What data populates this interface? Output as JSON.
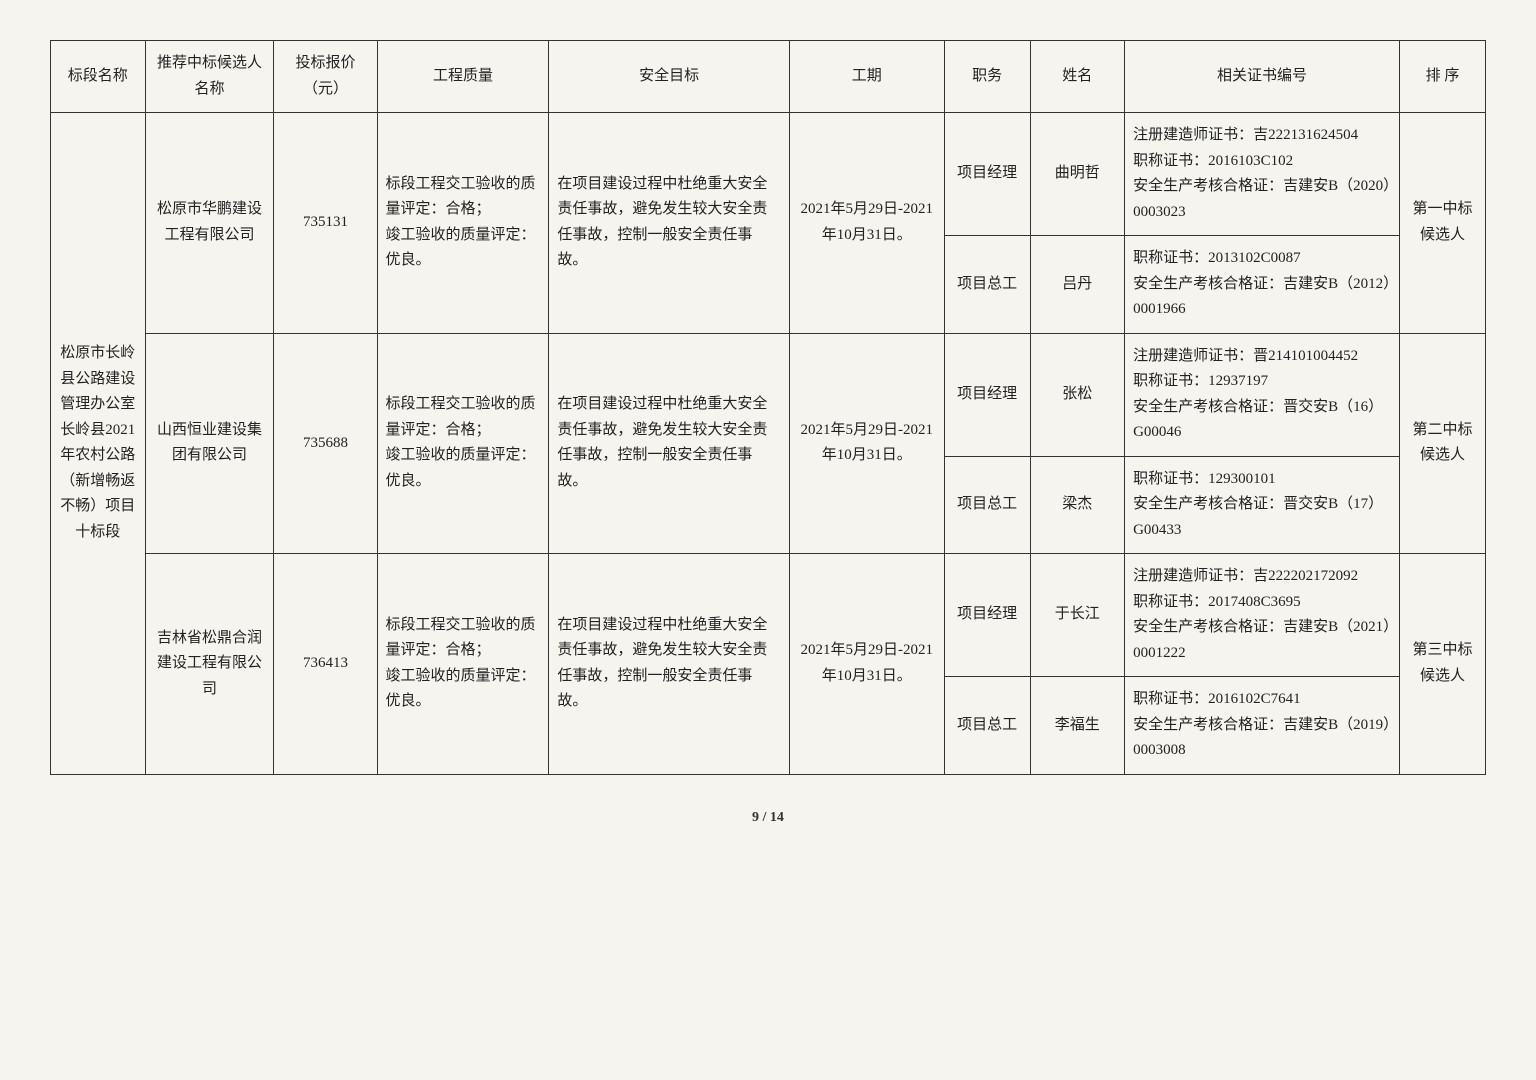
{
  "headers": {
    "section": "标段名称",
    "bidder": "推荐中标候选人名称",
    "price": "投标报价（元）",
    "quality": "工程质量",
    "safety": "安全目标",
    "period": "工期",
    "role": "职务",
    "name": "姓名",
    "cert": "相关证书编号",
    "rank": "排 序"
  },
  "section_name": "松原市长岭县公路建设管理办公室长岭县2021年农村公路（新增畅返不畅）项目十标段",
  "bidders": [
    {
      "company": "松原市华鹏建设工程有限公司",
      "price": "735131",
      "quality": "标段工程交工验收的质量评定：合格；\n竣工验收的质量评定：优良。",
      "safety": "在项目建设过程中杜绝重大安全责任事故，避免发生较大安全责任事故，控制一般安全责任事故。",
      "period": "2021年5月29日-2021年10月31日。",
      "personnel": [
        {
          "role": "项目经理",
          "name": "曲明哲",
          "cert": "注册建造师证书：吉222131624504\n职称证书：2016103C102\n安全生产考核合格证：吉建安B（2020）0003023"
        },
        {
          "role": "项目总工",
          "name": "吕丹",
          "cert": "职称证书：2013102C0087\n安全生产考核合格证：吉建安B（2012）0001966"
        }
      ],
      "rank": "第一中标候选人"
    },
    {
      "company": "山西恒业建设集团有限公司",
      "price": "735688",
      "quality": "标段工程交工验收的质量评定：合格；\n竣工验收的质量评定：优良。",
      "safety": "在项目建设过程中杜绝重大安全责任事故，避免发生较大安全责任事故，控制一般安全责任事故。",
      "period": "2021年5月29日-2021年10月31日。",
      "personnel": [
        {
          "role": "项目经理",
          "name": "张松",
          "cert": "注册建造师证书：晋214101004452\n职称证书：12937197\n安全生产考核合格证：晋交安B（16）G00046"
        },
        {
          "role": "项目总工",
          "name": "梁杰",
          "cert": "职称证书：129300101\n安全生产考核合格证：晋交安B（17）G00433"
        }
      ],
      "rank": "第二中标候选人"
    },
    {
      "company": "吉林省松鼎合润建设工程有限公司",
      "price": "736413",
      "quality": "标段工程交工验收的质量评定：合格；\n竣工验收的质量评定：优良。",
      "safety": "在项目建设过程中杜绝重大安全责任事故，避免发生较大安全责任事故，控制一般安全责任事故。",
      "period": "2021年5月29日-2021年10月31日。",
      "personnel": [
        {
          "role": "项目经理",
          "name": "于长江",
          "cert": "注册建造师证书：吉222202172092\n职称证书：2017408C3695\n安全生产考核合格证：吉建安B（2021）0001222"
        },
        {
          "role": "项目总工",
          "name": "李福生",
          "cert": "职称证书：2016102C7641\n安全生产考核合格证：吉建安B（2019）0003008"
        }
      ],
      "rank": "第三中标候选人"
    }
  ],
  "footer": "9 / 14"
}
